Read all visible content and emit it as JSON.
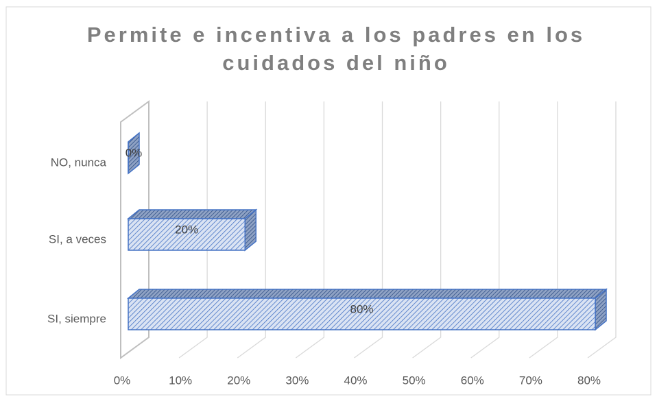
{
  "chart_data": {
    "type": "bar3d-horizontal",
    "title": "Permite e incentiva a los padres en los cuidados del niño",
    "categories": [
      "SI, siempre",
      "SI, a veces",
      "NO, nunca"
    ],
    "values": [
      80,
      20,
      0
    ],
    "value_labels": [
      "80%",
      "20%",
      "0%"
    ],
    "color": "#4472c4",
    "xlim": [
      0,
      80
    ],
    "xticks": [
      {
        "value": 0,
        "label": "0%"
      },
      {
        "value": 10,
        "label": "10%"
      },
      {
        "value": 20,
        "label": "20%"
      },
      {
        "value": 30,
        "label": "30%"
      },
      {
        "value": 40,
        "label": "40%"
      },
      {
        "value": 50,
        "label": "50%"
      },
      {
        "value": 60,
        "label": "60%"
      },
      {
        "value": 70,
        "label": "70%"
      },
      {
        "value": 80,
        "label": "80%"
      }
    ],
    "grid": true
  }
}
